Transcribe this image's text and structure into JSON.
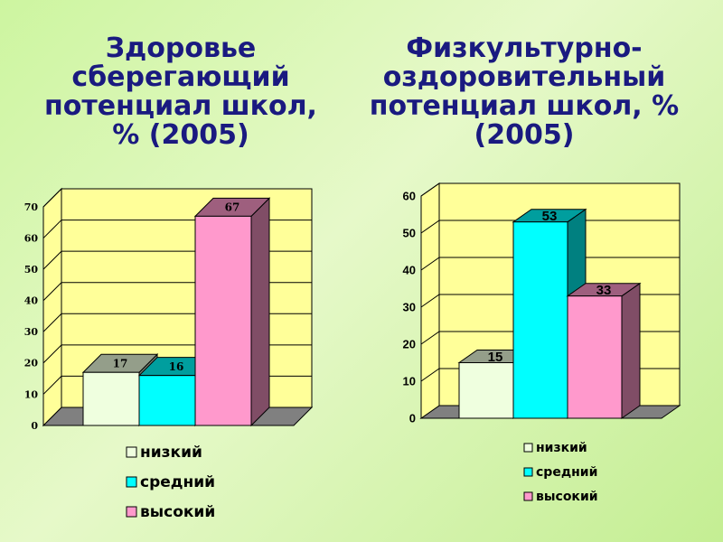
{
  "colors": {
    "wall": "#ffff99",
    "floor": "#808080",
    "low": "#efffdf",
    "medium": "#00ffff",
    "high": "#ff99cc"
  },
  "chart_data": [
    {
      "type": "bar",
      "title": "Здоровье сберегающий потенциал школ, % (2005)",
      "categories": [
        "низкий",
        "средний",
        "высокий"
      ],
      "values": [
        17,
        16,
        67
      ],
      "ylim": [
        0,
        70
      ],
      "yticks": [
        "0",
        "10",
        "20",
        "30",
        "40",
        "50",
        "60",
        "70"
      ],
      "grid": true,
      "legend": "bottom"
    },
    {
      "type": "bar",
      "title": "Физкультурно-оздоровительный потенциал школ, % (2005)",
      "categories": [
        "низкий",
        "средний",
        "высокий"
      ],
      "values": [
        15,
        53,
        33
      ],
      "ylim": [
        0,
        60
      ],
      "yticks": [
        "0",
        "10",
        "20",
        "30",
        "40",
        "50",
        "60"
      ],
      "grid": true,
      "legend": "bottom"
    }
  ]
}
